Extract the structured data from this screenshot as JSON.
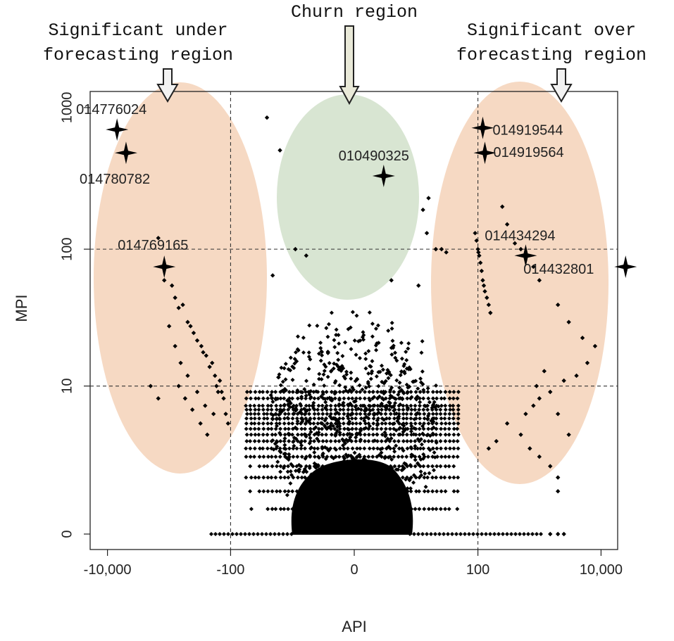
{
  "chart_data": {
    "type": "scatter",
    "xlabel": "API",
    "ylabel": "MPI",
    "x_ticks": [
      "-10,000",
      "-100",
      "0",
      "100",
      "10,000"
    ],
    "y_ticks": [
      "0",
      "10",
      "100",
      "1000"
    ],
    "x_scale": "signed-log",
    "y_scale": "log1p",
    "xlim": [
      -30000,
      30000
    ],
    "ylim": [
      -0.2,
      1400
    ],
    "grid": false,
    "reference_lines": {
      "x": [
        -100,
        100
      ],
      "y": [
        10,
        100
      ]
    },
    "regions": [
      {
        "name": "Significant under forecasting region",
        "fill": "#f6d9c3"
      },
      {
        "name": "Churn region",
        "fill": "#d8e5d2"
      },
      {
        "name": "Significant over forecasting region",
        "fill": "#f6d9c3"
      }
    ],
    "annotations": {
      "under": "Significant under\nforecasting region",
      "churn": "Churn region",
      "over": "Significant over\nforecasting region"
    },
    "highlighted": [
      {
        "id": "014776024",
        "x": -7000,
        "y": 700
      },
      {
        "id": "014780782",
        "x": -5000,
        "y": 480
      },
      {
        "id": "014769165",
        "x": -1200,
        "y": 75
      },
      {
        "id": "010490325",
        "x": 2,
        "y": 330
      },
      {
        "id": "014919544",
        "x": 120,
        "y": 720
      },
      {
        "id": "014919564",
        "x": 130,
        "y": 480
      },
      {
        "id": "014434294",
        "x": 600,
        "y": 90
      },
      {
        "id": "014432801",
        "x": 25000,
        "y": 75
      }
    ],
    "points": [
      [
        -1500,
        120
      ],
      [
        -1200,
        60
      ],
      [
        -800,
        45
      ],
      [
        -700,
        38
      ],
      [
        -500,
        30
      ],
      [
        -400,
        25
      ],
      [
        -300,
        20
      ],
      [
        -250,
        17
      ],
      [
        -200,
        15
      ],
      [
        -180,
        12
      ],
      [
        -150,
        11
      ],
      [
        -140,
        9
      ],
      [
        -130,
        8
      ],
      [
        -120,
        6
      ],
      [
        -110,
        5
      ],
      [
        -900,
        55
      ],
      [
        -600,
        40
      ],
      [
        -450,
        28
      ],
      [
        -350,
        22
      ],
      [
        -280,
        18
      ],
      [
        -220,
        14
      ],
      [
        -170,
        10
      ],
      [
        -160,
        9
      ],
      [
        -1000,
        28
      ],
      [
        -800,
        20
      ],
      [
        -650,
        15
      ],
      [
        -500,
        12
      ],
      [
        -350,
        9
      ],
      [
        -260,
        7
      ],
      [
        -190,
        6
      ],
      [
        -700,
        10
      ],
      [
        -550,
        8
      ],
      [
        -420,
        6.5
      ],
      [
        -310,
        5
      ],
      [
        -240,
        4
      ],
      [
        -2000,
        10
      ],
      [
        -1500,
        8
      ],
      [
        -25,
        850
      ],
      [
        -15,
        500
      ],
      [
        -8,
        100
      ],
      [
        -5,
        90
      ],
      [
        -20,
        65
      ],
      [
        3,
        60
      ],
      [
        15,
        230
      ],
      [
        12,
        190
      ],
      [
        14,
        130
      ],
      [
        10,
        55
      ],
      [
        20,
        100
      ],
      [
        25,
        100
      ],
      [
        30,
        95
      ],
      [
        90,
        130
      ],
      [
        95,
        115
      ],
      [
        100,
        100
      ],
      [
        102,
        95
      ],
      [
        105,
        90
      ],
      [
        110,
        80
      ],
      [
        115,
        70
      ],
      [
        120,
        60
      ],
      [
        125,
        55
      ],
      [
        130,
        50
      ],
      [
        140,
        45
      ],
      [
        150,
        40
      ],
      [
        160,
        35
      ],
      [
        250,
        200
      ],
      [
        300,
        150
      ],
      [
        400,
        110
      ],
      [
        500,
        100
      ],
      [
        800,
        75
      ],
      [
        1000,
        60
      ],
      [
        2000,
        40
      ],
      [
        3000,
        30
      ],
      [
        5000,
        23
      ],
      [
        8000,
        20
      ],
      [
        6000,
        15
      ],
      [
        4000,
        12
      ],
      [
        2500,
        11
      ],
      [
        1500,
        9
      ],
      [
        1000,
        8
      ],
      [
        800,
        7
      ],
      [
        600,
        6
      ],
      [
        900,
        10
      ],
      [
        1200,
        13
      ],
      [
        2000,
        6
      ],
      [
        3000,
        4
      ],
      [
        150,
        3
      ],
      [
        200,
        3.5
      ],
      [
        300,
        5
      ],
      [
        500,
        4
      ],
      [
        700,
        3
      ],
      [
        1000,
        2.5
      ],
      [
        1500,
        2
      ],
      [
        2000,
        1.5
      ],
      [
        1500,
        0
      ],
      [
        2000,
        0
      ],
      [
        2500,
        0
      ],
      [
        2000,
        1
      ]
    ],
    "band_rows": [
      0.5,
      1,
      1.5,
      2,
      2.5,
      3,
      3.5,
      4,
      4.5,
      5,
      5.5,
      6,
      6.5,
      7,
      8,
      9
    ]
  }
}
